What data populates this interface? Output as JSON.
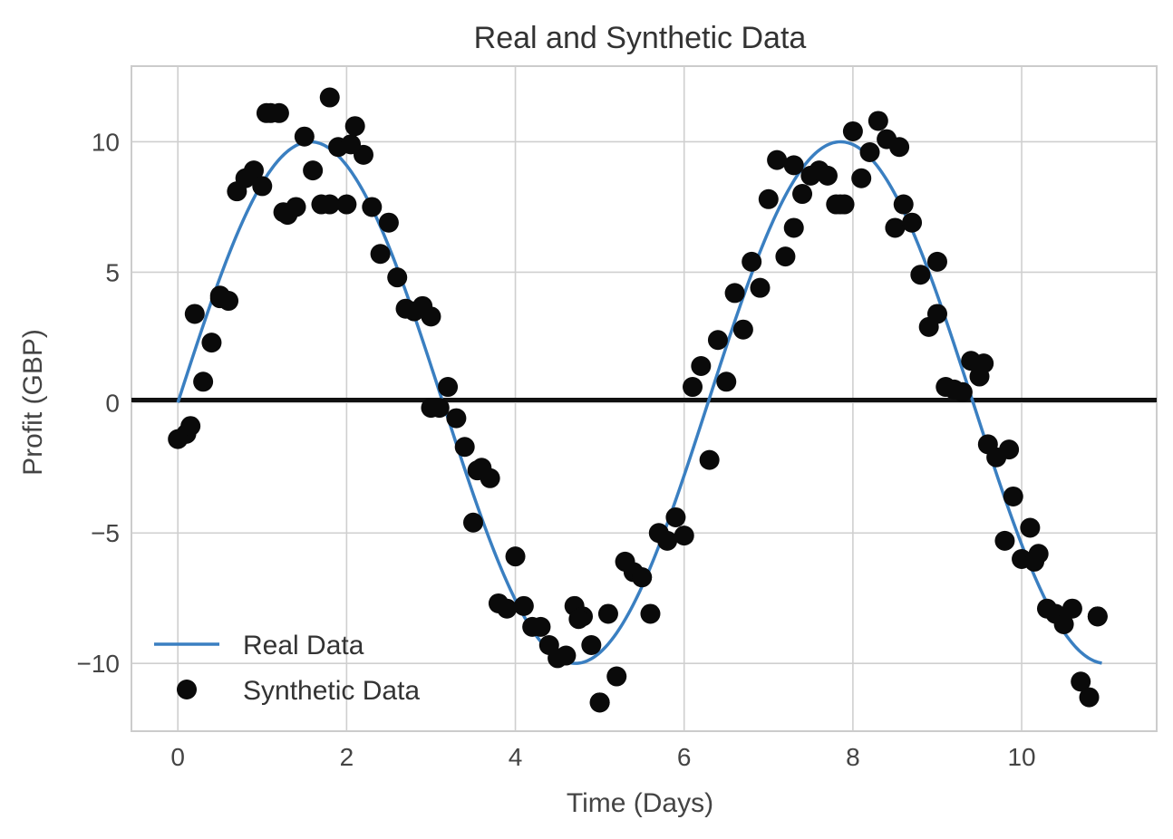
{
  "chart_data": {
    "type": "scatter",
    "title": "Real and Synthetic Data",
    "xlabel": "Time (Days)",
    "ylabel": "Profit (GBP)",
    "xlim": [
      -0.55,
      11.6
    ],
    "ylim": [
      -12.6,
      12.9
    ],
    "xticks": [
      0,
      2,
      4,
      6,
      8,
      10
    ],
    "xtick_labels": [
      "0",
      "2",
      "4",
      "6",
      "8",
      "10"
    ],
    "yticks": [
      10,
      5,
      0,
      -5,
      -10
    ],
    "ytick_labels": [
      "10",
      "5",
      "0",
      "−5",
      "−10"
    ],
    "grid": true,
    "legend_position": "bottom-left",
    "horizontal_line": {
      "y": 0.1,
      "color": "#111111"
    },
    "series": [
      {
        "name": "Real Data",
        "kind": "line",
        "color": "#3a7fc1",
        "function": "10*sin(x)",
        "x_range": [
          0,
          10.95
        ]
      },
      {
        "name": "Synthetic Data",
        "kind": "scatter",
        "color": "#0a0a0a",
        "x": [
          0.0,
          0.1,
          0.2,
          0.3,
          0.4,
          0.5,
          0.6,
          0.7,
          0.8,
          0.9,
          1.0,
          1.1,
          1.2,
          1.3,
          1.4,
          1.5,
          1.6,
          1.7,
          1.8,
          1.9,
          2.0,
          2.1,
          2.2,
          2.3,
          2.4,
          2.5,
          2.6,
          2.7,
          2.8,
          2.9,
          3.0,
          3.1,
          3.2,
          3.3,
          3.4,
          3.5,
          3.6,
          3.7,
          3.8,
          3.9,
          4.0,
          4.1,
          4.2,
          4.3,
          4.4,
          4.5,
          4.6,
          4.7,
          4.8,
          4.9,
          5.0,
          5.1,
          5.2,
          5.3,
          5.4,
          5.5,
          5.6,
          5.7,
          5.8,
          5.9,
          6.0,
          6.1,
          6.2,
          6.3,
          6.4,
          6.5,
          6.6,
          6.7,
          6.8,
          6.9,
          7.0,
          7.1,
          7.2,
          7.3,
          7.4,
          7.5,
          7.6,
          7.7,
          7.8,
          7.9,
          8.0,
          8.1,
          8.2,
          8.3,
          8.4,
          8.5,
          8.6,
          8.7,
          8.8,
          8.9,
          9.0,
          9.1,
          9.2,
          9.3,
          9.4,
          9.5,
          9.6,
          9.7,
          9.8,
          9.9,
          10.0,
          10.1,
          10.2,
          10.3,
          10.4,
          10.5,
          10.6,
          10.7,
          10.8,
          10.9,
          0.15,
          0.5,
          1.05,
          1.25,
          1.8,
          2.05,
          3.0,
          3.55,
          4.75,
          5.0,
          5.5,
          7.3,
          7.85,
          8.55,
          9.0,
          9.55,
          9.85,
          10.15,
          10.9
        ],
        "y": [
          -1.4,
          -1.2,
          3.4,
          0.8,
          2.3,
          4.1,
          3.9,
          8.1,
          8.6,
          8.9,
          8.3,
          11.1,
          11.1,
          7.2,
          7.5,
          10.2,
          8.9,
          7.6,
          11.7,
          9.8,
          7.6,
          10.6,
          9.5,
          7.5,
          5.7,
          6.9,
          4.8,
          3.6,
          3.5,
          3.7,
          3.3,
          -0.2,
          0.6,
          -0.6,
          -1.7,
          -4.6,
          -2.5,
          -2.9,
          -7.7,
          -7.9,
          -5.9,
          -7.8,
          -8.6,
          -8.6,
          -9.3,
          -9.8,
          -9.7,
          -7.8,
          -8.2,
          -9.3,
          -11.5,
          -8.1,
          -10.5,
          -6.1,
          -6.5,
          -6.7,
          -8.1,
          -5.0,
          -5.3,
          -4.4,
          -5.1,
          0.6,
          1.4,
          -2.2,
          2.4,
          0.8,
          4.2,
          2.8,
          5.4,
          4.4,
          7.8,
          9.3,
          5.6,
          6.7,
          8.0,
          8.7,
          8.9,
          8.7,
          7.6,
          7.6,
          10.4,
          8.6,
          9.6,
          10.8,
          10.1,
          6.7,
          7.6,
          6.9,
          4.9,
          2.9,
          3.4,
          0.6,
          0.5,
          0.4,
          1.6,
          1.0,
          -1.6,
          -2.1,
          -5.3,
          -3.6,
          -6.0,
          -4.8,
          -5.8,
          -7.9,
          -8.1,
          -8.5,
          -7.9,
          -10.7,
          -11.3,
          -8.2,
          -0.9,
          4.0,
          11.1,
          7.3,
          7.6,
          9.9,
          -0.2,
          -2.6,
          -8.3,
          -11.5,
          -6.7,
          9.1,
          7.6,
          9.8,
          5.4,
          1.5,
          -1.8,
          -6.1,
          -8.2
        ]
      }
    ]
  }
}
